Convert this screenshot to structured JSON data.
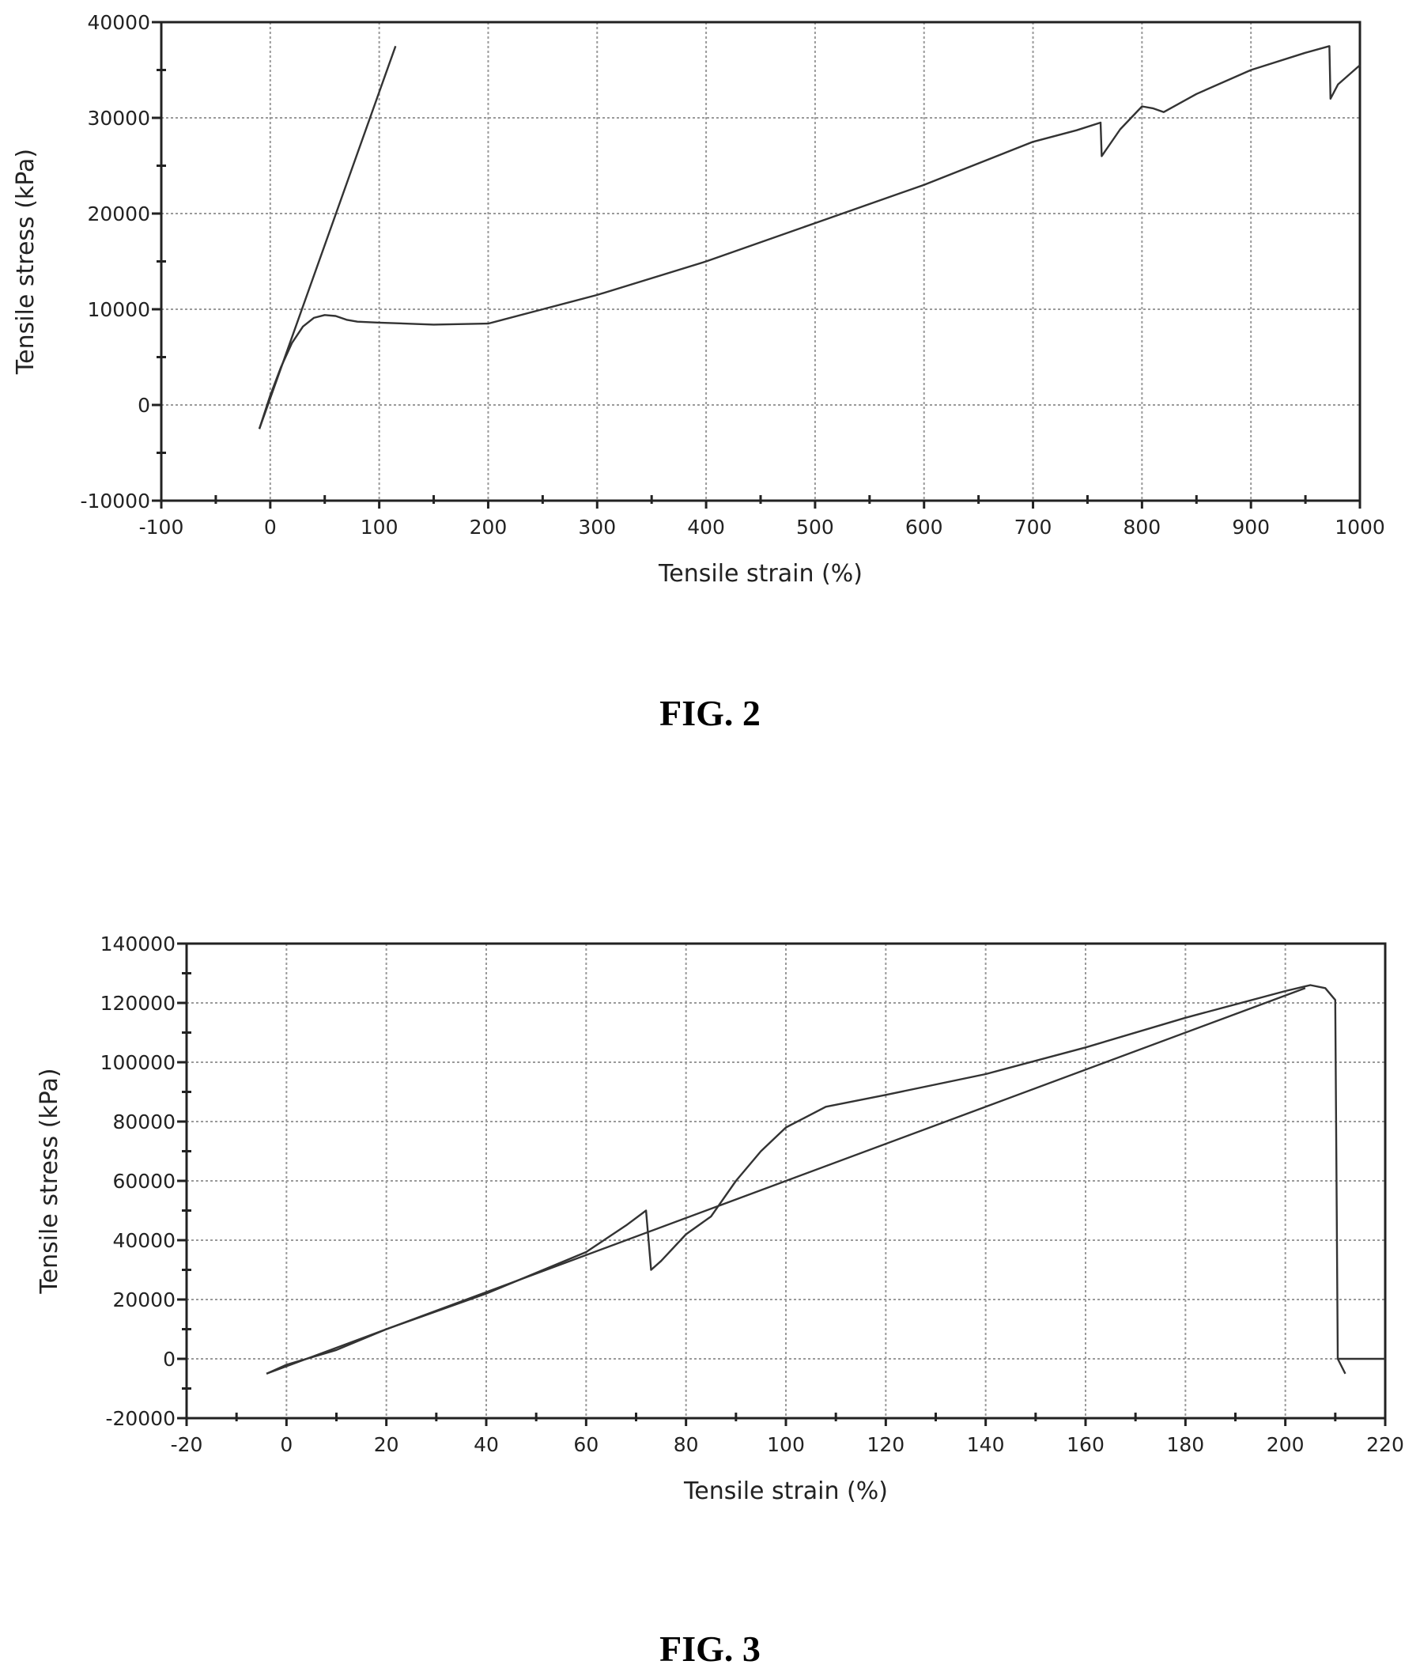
{
  "figures": [
    {
      "caption": "FIG. 2"
    },
    {
      "caption": "FIG. 3"
    }
  ],
  "chart_data": [
    {
      "type": "line",
      "title": "",
      "xlabel": "Tensile strain (%)",
      "ylabel": "Tensile stress (kPa)",
      "xlim": [
        -100,
        1000
      ],
      "ylim": [
        -10000,
        40000
      ],
      "xticks": [
        -100,
        0,
        100,
        200,
        300,
        400,
        500,
        600,
        700,
        800,
        900,
        1000
      ],
      "xtick_labels": [
        "-100",
        "0",
        "100",
        "200",
        "300",
        "400",
        "500",
        "600",
        "700",
        "800",
        "900",
        "1000"
      ],
      "yticks": [
        -10000,
        0,
        10000,
        20000,
        30000,
        40000
      ],
      "ytick_labels": [
        "-10000",
        "0",
        "10000",
        "20000",
        "30000",
        "40000"
      ],
      "grid": true,
      "line_color": "#333333",
      "series": [
        {
          "x": [
            -10,
            0,
            10,
            20,
            30,
            40,
            50,
            60,
            70,
            80,
            100,
            150,
            200,
            250,
            300,
            400,
            500,
            600,
            700,
            740,
            762,
            763,
            780,
            800,
            810,
            820,
            850,
            900,
            950,
            972,
            973,
            980,
            1000
          ],
          "y": [
            -2500,
            1000,
            4000,
            6500,
            8200,
            9100,
            9400,
            9300,
            8900,
            8700,
            8600,
            8400,
            8500,
            10000,
            11500,
            15000,
            19000,
            23000,
            27500,
            28700,
            29500,
            26000,
            28800,
            31200,
            31000,
            30600,
            32500,
            35000,
            36800,
            37500,
            32000,
            33500,
            35500
          ]
        },
        {
          "x": [
            -10,
            115
          ],
          "y": [
            -2500,
            37500
          ]
        }
      ]
    },
    {
      "type": "line",
      "title": "",
      "xlabel": "Tensile strain (%)",
      "ylabel": "Tensile stress (kPa)",
      "xlim": [
        -20,
        220
      ],
      "ylim": [
        -20000,
        140000
      ],
      "xticks": [
        -20,
        0,
        20,
        40,
        60,
        80,
        100,
        120,
        140,
        160,
        180,
        200,
        220
      ],
      "xtick_labels": [
        "-20",
        "0",
        "20",
        "40",
        "60",
        "80",
        "100",
        "120",
        "140",
        "160",
        "180",
        "200",
        "220"
      ],
      "yticks": [
        -20000,
        0,
        20000,
        40000,
        60000,
        80000,
        100000,
        120000,
        140000
      ],
      "ytick_labels": [
        "-20000",
        "0",
        "20000",
        "40000",
        "60000",
        "80000",
        "100000",
        "120000",
        "140000"
      ],
      "grid": true,
      "line_color": "#333333",
      "series": [
        {
          "x": [
            -4,
            0,
            10,
            20,
            40,
            60,
            68,
            72,
            73,
            75,
            80,
            85,
            90,
            95,
            100,
            108,
            120,
            140,
            160,
            180,
            200,
            205,
            208,
            210,
            210.5,
            212
          ],
          "y": [
            -5000,
            -2000,
            3000,
            10000,
            22000,
            36000,
            45000,
            50000,
            30000,
            33000,
            42000,
            48000,
            60000,
            70000,
            78000,
            85000,
            89000,
            96000,
            105000,
            115000,
            124000,
            126000,
            125000,
            121000,
            0,
            -5000
          ]
        },
        {
          "x": [
            -4,
            204
          ],
          "y": [
            -5000,
            125000
          ]
        },
        {
          "x": [
            210.5,
            220
          ],
          "y": [
            0,
            0
          ]
        }
      ]
    }
  ]
}
